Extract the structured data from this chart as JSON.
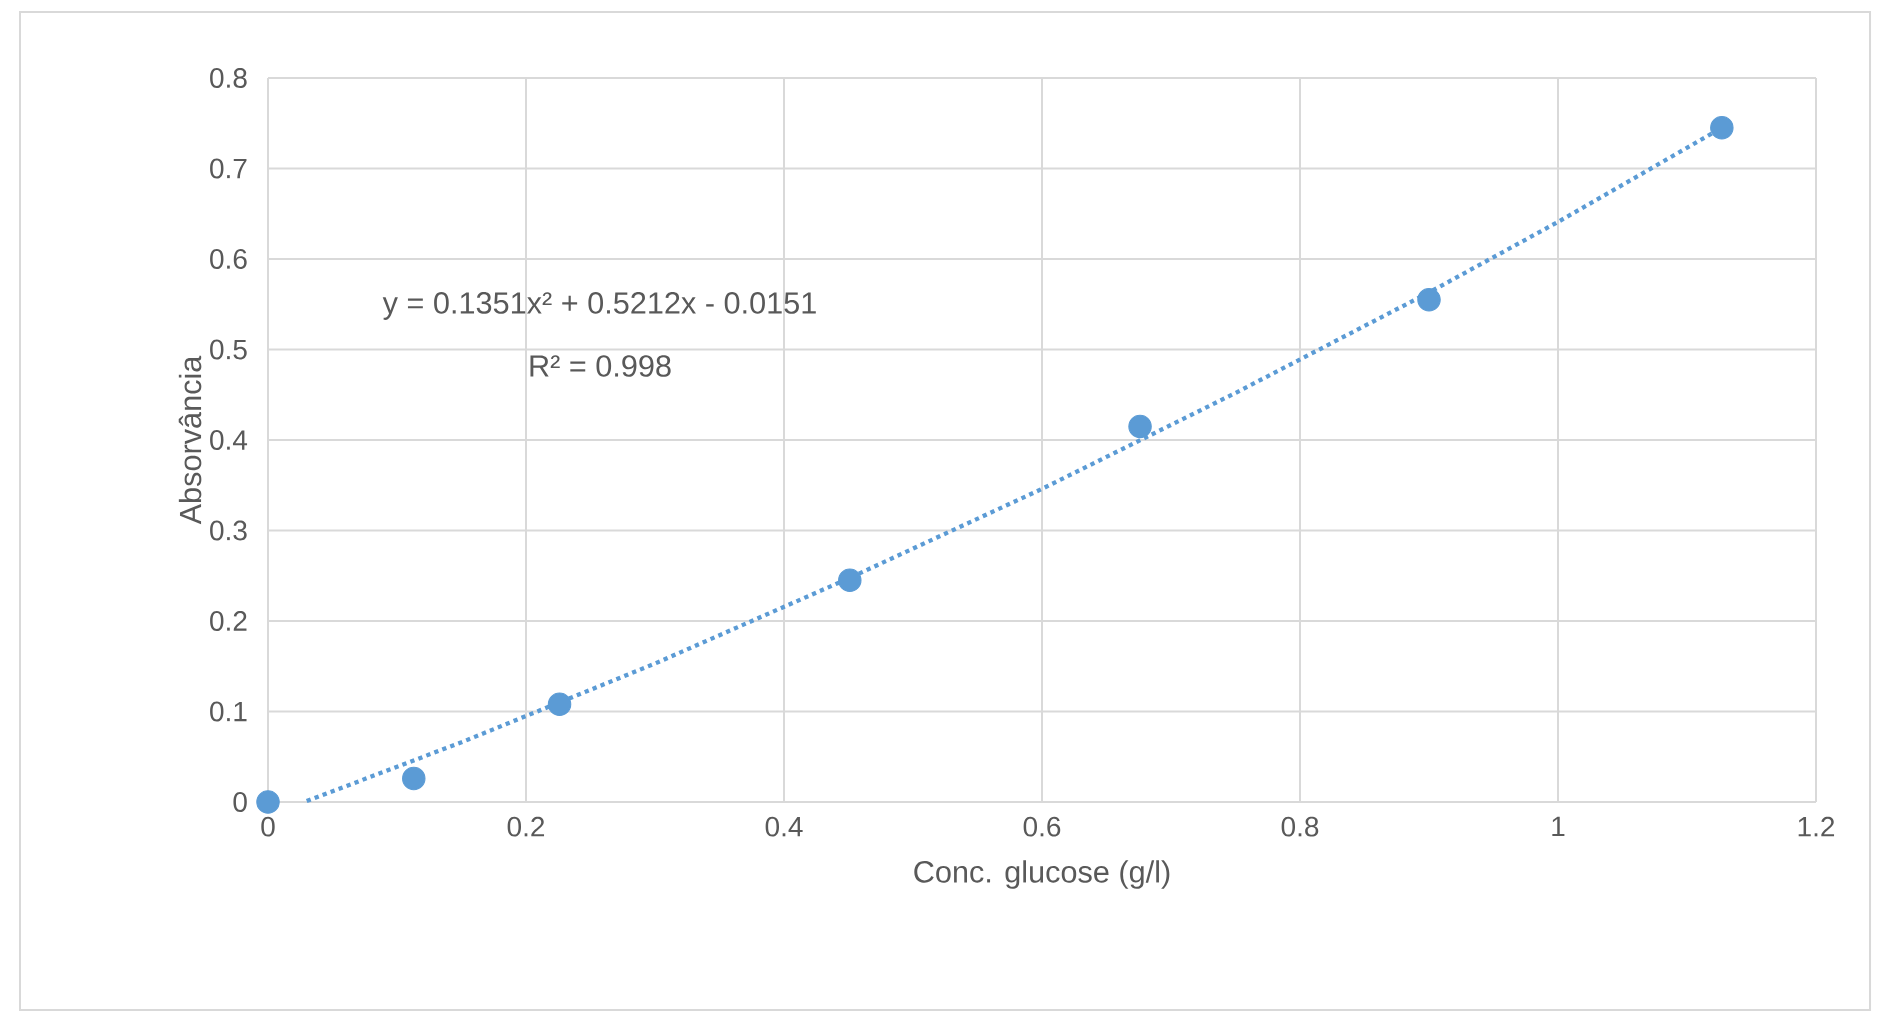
{
  "chart_data": {
    "type": "scatter",
    "xlabel": "Conc. glucose (g/l)",
    "ylabel": "Absorvância",
    "series": [
      {
        "color": "#5b9bd5",
        "x": [
          0,
          0.113,
          0.226,
          0.451,
          0.676,
          0.9,
          1.127
        ],
        "values": [
          0,
          0.026,
          0.108,
          0.245,
          0.415,
          0.555,
          0.745
        ]
      },
      {
        "type": "line",
        "color": "#5b9bd5",
        "line_style": "dotted",
        "marker": "none",
        "x": [
          0.03,
          0.15,
          0.3,
          0.45,
          0.6,
          0.75,
          0.9,
          1.0,
          1.127
        ],
        "values": [
          0.001,
          0.066,
          0.153,
          0.247,
          0.346,
          0.452,
          0.563,
          0.641,
          0.745
        ]
      }
    ],
    "annotations": [
      "y = 0.1351x² + 0.5212x - 0.0151",
      "R² = 0.998"
    ],
    "xlim": [
      0,
      1.2
    ],
    "ylim": [
      0,
      0.8
    ],
    "xticks": [
      0,
      0.2,
      0.4,
      0.6,
      0.8,
      1,
      1.2
    ],
    "yticks": [
      0,
      0.1,
      0.2,
      0.3,
      0.4,
      0.5,
      0.6,
      0.7,
      0.8
    ],
    "grid": true,
    "marker": "circle"
  }
}
